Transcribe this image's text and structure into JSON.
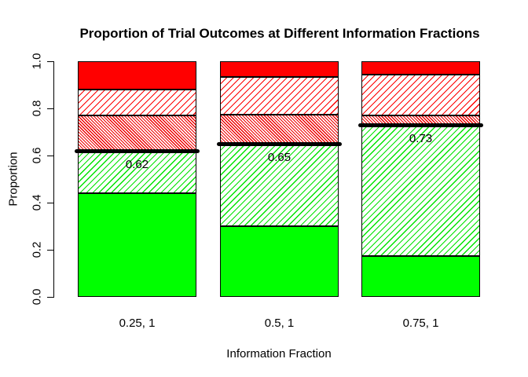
{
  "title": "Proportion of Trial Outcomes at Different Information Fractions",
  "x_axis": {
    "label": "Information Fraction",
    "tick_labels": [
      "0.25, 1",
      "0.5, 1",
      "0.75, 1"
    ]
  },
  "y_axis": {
    "label": "Proportion",
    "tick_labels": [
      "0.0",
      "0.2",
      "0.4",
      "0.6",
      "0.8",
      "1.0"
    ],
    "tick_values": [
      0.0,
      0.2,
      0.4,
      0.6,
      0.8,
      1.0
    ]
  },
  "chart_data": {
    "type": "bar",
    "stacked": true,
    "title": "Proportion of Trial Outcomes at Different Information Fractions",
    "xlabel": "Information Fraction",
    "ylabel": "Proportion",
    "ylim": [
      0,
      1
    ],
    "grid": false,
    "legend": "none",
    "categories": [
      "0.25, 1",
      "0.5, 1",
      "0.75, 1"
    ],
    "series": [
      {
        "name": "solid-green",
        "pattern": "solid",
        "color": "#00FF00",
        "values": [
          0.44,
          0.3,
          0.175
        ]
      },
      {
        "name": "hatched-green",
        "pattern": "hatch-forward",
        "color": "#00E400",
        "values": [
          0.18,
          0.35,
          0.555
        ]
      },
      {
        "name": "hatched-red-dense",
        "pattern": "hatch-back-dense",
        "color": "#EE0000",
        "values": [
          0.15,
          0.125,
          0.04
        ]
      },
      {
        "name": "hatched-red",
        "pattern": "hatch-forward",
        "color": "#FF0000",
        "values": [
          0.11,
          0.16,
          0.175
        ]
      },
      {
        "name": "solid-red",
        "pattern": "solid",
        "color": "#FF0000",
        "values": [
          0.12,
          0.065,
          0.055
        ]
      }
    ],
    "threshold_lines": {
      "values": [
        0.62,
        0.65,
        0.73
      ],
      "labels": [
        "0.62",
        "0.65",
        "0.73"
      ],
      "color": "#000000"
    }
  },
  "colors": {
    "background": "#FFFFFF",
    "axis": "#000000",
    "text": "#000000"
  }
}
